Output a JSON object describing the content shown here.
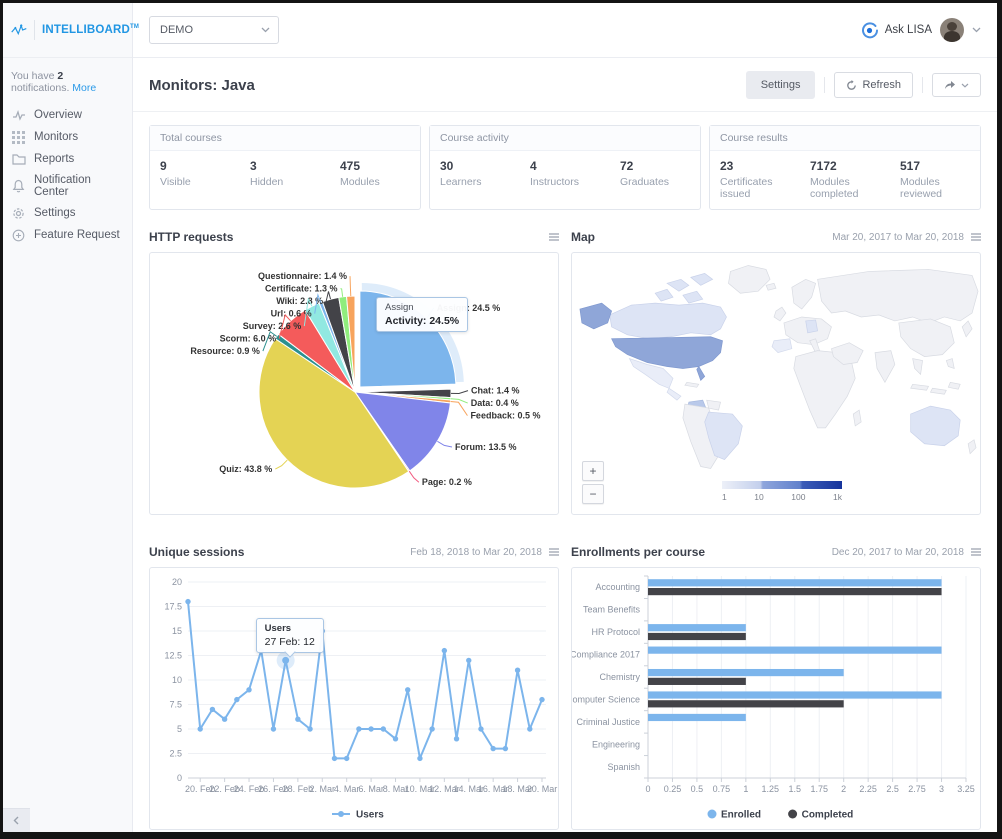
{
  "topbar": {
    "logo_text": "INTELLIBOARD",
    "logo_tm": "TM",
    "account_select_value": "DEMO",
    "ask_lisa_label": "Ask LISA"
  },
  "sidebar": {
    "notification_prefix": "You have",
    "notification_count": "2",
    "notification_suffix": "notifications.",
    "notification_more": "More",
    "items": [
      {
        "label": "Overview",
        "icon": "activity-icon"
      },
      {
        "label": "Monitors",
        "icon": "grid-icon"
      },
      {
        "label": "Reports",
        "icon": "folder-icon"
      },
      {
        "label": "Notification Center",
        "icon": "bell-icon"
      },
      {
        "label": "Settings",
        "icon": "gear-icon"
      },
      {
        "label": "Feature Request",
        "icon": "plus-circle-icon"
      }
    ]
  },
  "page": {
    "title": "Monitors: Java",
    "settings_button": "Settings",
    "refresh_button": "Refresh"
  },
  "stat_cards": [
    {
      "title": "Total courses",
      "stats": [
        {
          "value": "9",
          "label": "Visible"
        },
        {
          "value": "3",
          "label": "Hidden"
        },
        {
          "value": "475",
          "label": "Modules"
        }
      ]
    },
    {
      "title": "Course activity",
      "stats": [
        {
          "value": "30",
          "label": "Learners"
        },
        {
          "value": "4",
          "label": "Instructors"
        },
        {
          "value": "72",
          "label": "Graduates"
        }
      ]
    },
    {
      "title": "Course results",
      "stats": [
        {
          "value": "23",
          "label": "Certificates issued"
        },
        {
          "value": "7172",
          "label": "Modules completed"
        },
        {
          "value": "517",
          "label": "Modules reviewed"
        }
      ]
    }
  ],
  "panels": {
    "http_requests": {
      "title": "HTTP requests"
    },
    "map": {
      "title": "Map",
      "date_range": "Mar 20, 2017 to Mar 20, 2018"
    },
    "unique_sessions": {
      "title": "Unique sessions",
      "date_range": "Feb 18, 2018 to Mar 20, 2018"
    },
    "enrollments": {
      "title": "Enrollments per course",
      "date_range": "Dec 20, 2017 to Mar 20, 2018"
    }
  },
  "chart_data": [
    {
      "id": "http_requests",
      "type": "pie",
      "title": "HTTP requests",
      "series": [
        {
          "name": "Assign",
          "value": 24.5,
          "color": "#7cb5ec",
          "selected": true
        },
        {
          "name": "Chat",
          "value": 1.4,
          "color": "#434348"
        },
        {
          "name": "Data",
          "value": 0.4,
          "color": "#90ed7d"
        },
        {
          "name": "Feedback",
          "value": 0.5,
          "color": "#f7a35c"
        },
        {
          "name": "Forum",
          "value": 13.5,
          "color": "#8085e9"
        },
        {
          "name": "Page",
          "value": 0.2,
          "color": "#f15c80"
        },
        {
          "name": "Quiz",
          "value": 43.8,
          "color": "#e4d354"
        },
        {
          "name": "Resource",
          "value": 0.9,
          "color": "#2b908f"
        },
        {
          "name": "Scorm",
          "value": 6.0,
          "color": "#f45b5b"
        },
        {
          "name": "Survey",
          "value": 2.6,
          "color": "#91e8e1"
        },
        {
          "name": "Url",
          "value": 0.6,
          "color": "#7cb5ec"
        },
        {
          "name": "Wiki",
          "value": 2.8,
          "color": "#434348"
        },
        {
          "name": "Certificate",
          "value": 1.3,
          "color": "#90ed7d"
        },
        {
          "name": "Questionnaire",
          "value": 1.4,
          "color": "#f7a35c"
        }
      ],
      "tooltip": {
        "line1": "Assign",
        "line2": "Activity: 24.5%"
      }
    },
    {
      "id": "unique_sessions",
      "type": "line",
      "title": "Unique sessions",
      "ylim": [
        0,
        20
      ],
      "y_ticks": [
        "0",
        "2.5",
        "5",
        "7.5",
        "10",
        "12.5",
        "15",
        "17.5",
        "20"
      ],
      "x_tick_labels": [
        "20. Feb",
        "22. Feb",
        "24. Feb",
        "26. Feb",
        "28. Feb",
        "2. Mar",
        "4. Mar",
        "6. Mar",
        "8. Mar",
        "10. Mar",
        "12. Mar",
        "14. Mar",
        "16. Mar",
        "18. Mar",
        "20. Mar"
      ],
      "series": [
        {
          "name": "Users",
          "color": "#7cb5ec",
          "values": [
            18,
            5,
            7,
            6,
            8,
            9,
            13,
            5,
            12,
            6,
            5,
            15,
            2,
            2,
            5,
            5,
            5,
            4,
            9,
            2,
            5,
            13,
            4,
            12,
            5,
            3,
            3,
            11,
            5,
            8
          ]
        }
      ],
      "tooltip": {
        "line1": "Users",
        "line2": "27 Feb: 12",
        "point_index": 8
      },
      "legend": [
        {
          "name": "Users",
          "color": "#7cb5ec"
        }
      ]
    },
    {
      "id": "enrollments",
      "type": "bar",
      "title": "Enrollments per course",
      "categories": [
        "Accounting",
        "Team Benefits",
        "HR Protocol",
        "Compliance 2017",
        "Chemistry",
        "Computer Science",
        "Criminal Justice",
        "Engineering",
        "Spanish"
      ],
      "series": [
        {
          "name": "Enrolled",
          "color": "#7cb5ec",
          "values": [
            3,
            0,
            1,
            3,
            2,
            3,
            1,
            0,
            0
          ]
        },
        {
          "name": "Completed",
          "color": "#434348",
          "values": [
            3,
            0,
            1,
            0,
            1,
            2,
            0,
            0,
            0
          ]
        }
      ],
      "xlim": [
        0,
        3.25
      ],
      "x_ticks": [
        "0",
        "0.25",
        "0.5",
        "0.75",
        "1",
        "1.25",
        "1.5",
        "1.75",
        "2",
        "2.25",
        "2.5",
        "2.75",
        "3",
        "3.25"
      ]
    },
    {
      "id": "map",
      "type": "choropleth",
      "title": "Map",
      "scale_ticks": [
        "1",
        "10",
        "100",
        "1k"
      ],
      "zoom_in": "+",
      "zoom_out": "−",
      "regions": [
        {
          "name": "United States",
          "intensity": "high"
        },
        {
          "name": "Canada",
          "intensity": "low"
        },
        {
          "name": "Colombia",
          "intensity": "medium"
        },
        {
          "name": "Brazil",
          "intensity": "low"
        },
        {
          "name": "Mexico",
          "intensity": "very-low"
        },
        {
          "name": "Germany",
          "intensity": "low"
        },
        {
          "name": "Spain",
          "intensity": "very-low"
        },
        {
          "name": "Australia",
          "intensity": "low"
        }
      ]
    }
  ]
}
